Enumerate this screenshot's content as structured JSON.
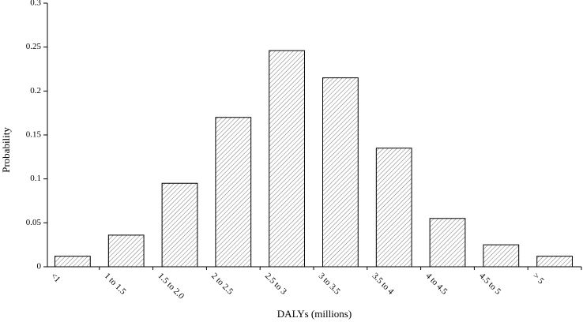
{
  "chart_data": {
    "type": "bar",
    "x_label": "DALYs (millions)",
    "y_label": "Probability",
    "categories": [
      "<1",
      "1 to 1.5",
      "1.5 to 2.0",
      "2 to 2.5",
      "2.5 to 3",
      "3 to 3.5",
      "3.5 to 4",
      "4 to 4.5",
      "4.5 to 5",
      "> 5"
    ],
    "values": [
      0.012,
      0.036,
      0.095,
      0.17,
      0.246,
      0.215,
      0.135,
      0.055,
      0.025,
      0.012
    ],
    "ylim": [
      0,
      0.3
    ],
    "yticks": [
      0,
      0.05,
      0.1,
      0.15,
      0.2,
      0.25,
      0.3
    ]
  }
}
